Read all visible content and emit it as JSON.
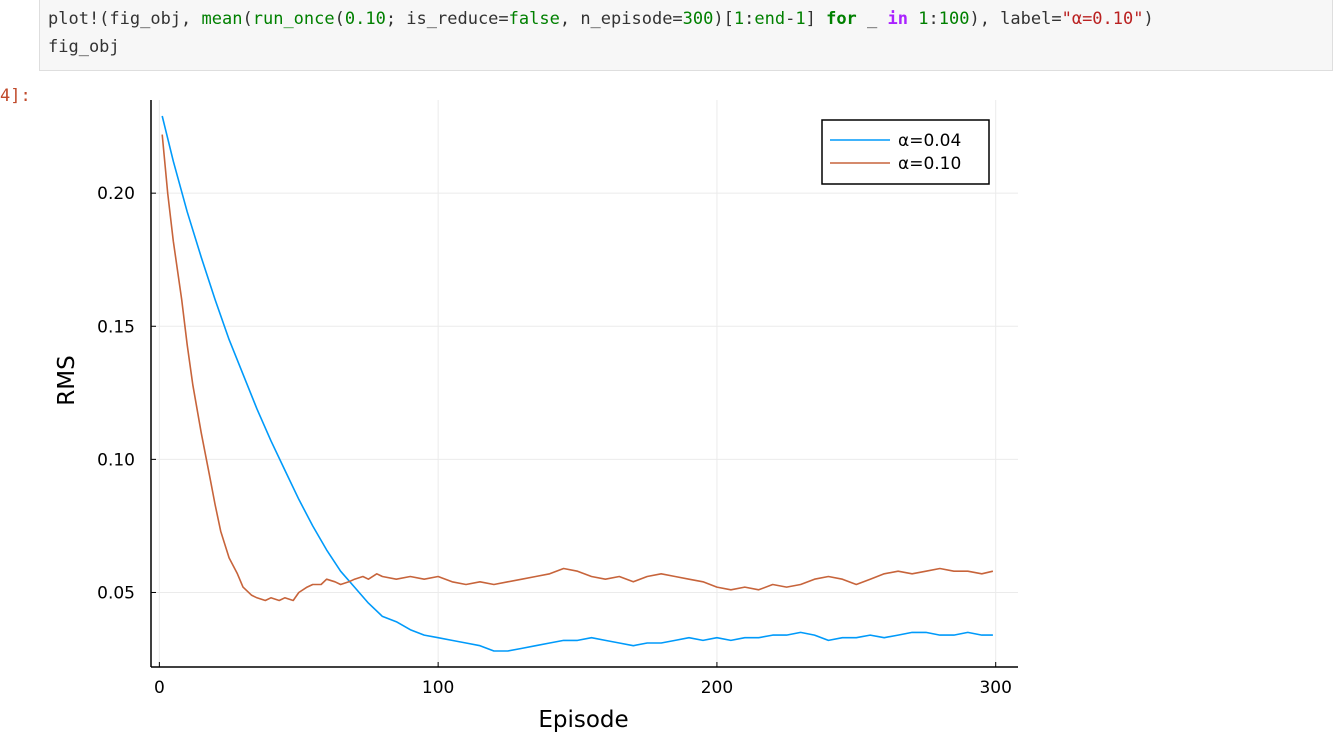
{
  "code_cell": {
    "line1": {
      "p1": "plot!(fig_obj, ",
      "p2": "mean",
      "p3": "(",
      "p4": "run_once",
      "p5": "(",
      "p6": "0.10",
      "p7": "; is_reduce=",
      "p8": "false",
      "p9": ", n_episode=",
      "p10": "300",
      "p11": ")[",
      "p12": "1",
      "p13": ":",
      "p14": "end",
      "p15": "-",
      "p16": "1",
      "p17": "] ",
      "p18": "for",
      "p19": " _ ",
      "p20": "in",
      "p21": " ",
      "p22": "1",
      "p23": ":",
      "p24": "100",
      "p25": "), label=",
      "p26": "\"α=0.10\"",
      "p27": ")"
    },
    "line2": "fig_obj"
  },
  "output_prompt": "4]:",
  "colors": {
    "series1": "#009AFA",
    "series2": "#C7643B",
    "grid": "#ebebeb",
    "axis": "#000000"
  },
  "chart_data": {
    "type": "line",
    "xlabel": "Episode",
    "ylabel": "RMS",
    "xlim": [
      -3,
      308
    ],
    "ylim": [
      0.022,
      0.235
    ],
    "xticks": [
      0,
      100,
      200,
      300
    ],
    "xtick_labels": [
      "0",
      "100",
      "200",
      "300"
    ],
    "yticks": [
      0.05,
      0.1,
      0.15,
      0.2
    ],
    "ytick_labels": [
      "0.05",
      "0.10",
      "0.15",
      "0.20"
    ],
    "grid": true,
    "legend": "top-right",
    "series": [
      {
        "name": "α=0.04",
        "x": [
          1,
          5,
          10,
          15,
          20,
          25,
          30,
          35,
          40,
          45,
          50,
          55,
          60,
          65,
          70,
          75,
          80,
          85,
          90,
          95,
          100,
          105,
          110,
          115,
          120,
          125,
          130,
          135,
          140,
          145,
          150,
          155,
          160,
          165,
          170,
          175,
          180,
          185,
          190,
          195,
          200,
          205,
          210,
          215,
          220,
          225,
          230,
          235,
          240,
          245,
          250,
          255,
          260,
          265,
          270,
          275,
          280,
          285,
          290,
          295,
          299
        ],
        "values": [
          0.229,
          0.212,
          0.193,
          0.176,
          0.16,
          0.145,
          0.132,
          0.119,
          0.107,
          0.096,
          0.085,
          0.075,
          0.066,
          0.058,
          0.052,
          0.046,
          0.041,
          0.039,
          0.036,
          0.034,
          0.033,
          0.032,
          0.031,
          0.03,
          0.028,
          0.028,
          0.029,
          0.03,
          0.031,
          0.032,
          0.032,
          0.033,
          0.032,
          0.031,
          0.03,
          0.031,
          0.031,
          0.032,
          0.033,
          0.032,
          0.033,
          0.032,
          0.033,
          0.033,
          0.034,
          0.034,
          0.035,
          0.034,
          0.032,
          0.033,
          0.033,
          0.034,
          0.033,
          0.034,
          0.035,
          0.035,
          0.034,
          0.034,
          0.035,
          0.034,
          0.034
        ]
      },
      {
        "name": "α=0.10",
        "x": [
          1,
          3,
          5,
          8,
          10,
          12,
          15,
          18,
          20,
          22,
          25,
          28,
          30,
          33,
          35,
          38,
          40,
          43,
          45,
          48,
          50,
          53,
          55,
          58,
          60,
          63,
          65,
          68,
          70,
          73,
          75,
          78,
          80,
          85,
          90,
          95,
          100,
          105,
          110,
          115,
          120,
          125,
          130,
          135,
          140,
          145,
          150,
          155,
          160,
          165,
          170,
          175,
          180,
          185,
          190,
          195,
          200,
          205,
          210,
          215,
          220,
          225,
          230,
          235,
          240,
          245,
          250,
          255,
          260,
          265,
          270,
          275,
          280,
          285,
          290,
          295,
          299
        ],
        "values": [
          0.222,
          0.2,
          0.182,
          0.16,
          0.143,
          0.128,
          0.11,
          0.094,
          0.083,
          0.073,
          0.063,
          0.057,
          0.052,
          0.049,
          0.048,
          0.047,
          0.048,
          0.047,
          0.048,
          0.047,
          0.05,
          0.052,
          0.053,
          0.053,
          0.055,
          0.054,
          0.053,
          0.054,
          0.055,
          0.056,
          0.055,
          0.057,
          0.056,
          0.055,
          0.056,
          0.055,
          0.056,
          0.054,
          0.053,
          0.054,
          0.053,
          0.054,
          0.055,
          0.056,
          0.057,
          0.059,
          0.058,
          0.056,
          0.055,
          0.056,
          0.054,
          0.056,
          0.057,
          0.056,
          0.055,
          0.054,
          0.052,
          0.051,
          0.052,
          0.051,
          0.053,
          0.052,
          0.053,
          0.055,
          0.056,
          0.055,
          0.053,
          0.055,
          0.057,
          0.058,
          0.057,
          0.058,
          0.059,
          0.058,
          0.058,
          0.057,
          0.058
        ]
      }
    ]
  }
}
